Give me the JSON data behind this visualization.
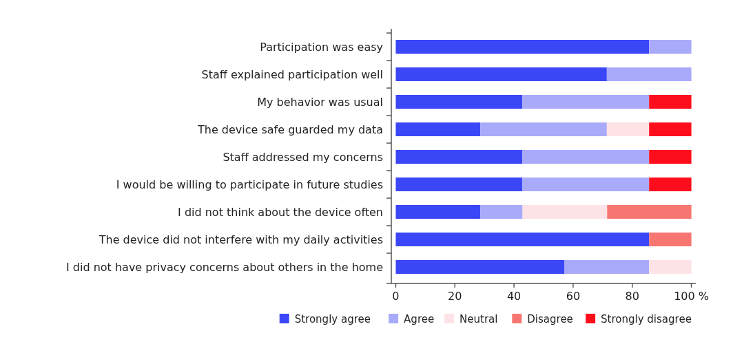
{
  "chart_data": {
    "type": "bar",
    "orientation": "horizontal",
    "stacked": true,
    "categories": [
      "Participation was easy",
      "Staff explained participation well",
      "My behavior was usual",
      "The device safe guarded my data",
      "Staff addressed my concerns",
      "I would be willing to participate in future studies",
      "I did not think about the device often",
      "The device did not interfere with my daily activities",
      "I did not have privacy concerns about others in the home"
    ],
    "series": [
      {
        "name": "Strongly agree",
        "color": "#3b47f7",
        "values": [
          85.7,
          71.4,
          42.8,
          28.6,
          42.8,
          42.8,
          28.6,
          85.7,
          57.1
        ]
      },
      {
        "name": "Agree",
        "color": "#aaaafb",
        "values": [
          14.3,
          28.6,
          42.9,
          42.8,
          42.9,
          42.9,
          14.3,
          null,
          28.6
        ]
      },
      {
        "name": "Neutral",
        "color": "#fde3e6",
        "values": [
          null,
          null,
          null,
          14.3,
          null,
          null,
          28.6,
          null,
          14.3
        ]
      },
      {
        "name": "Disagree",
        "color": "#f77671",
        "values": [
          null,
          null,
          null,
          null,
          null,
          null,
          28.5,
          14.3,
          null
        ]
      },
      {
        "name": "Strongly disagree",
        "color": "#fe0e1c",
        "values": [
          null,
          null,
          14.3,
          14.3,
          14.3,
          14.3,
          null,
          null,
          null
        ]
      }
    ],
    "xlim": [
      -1.5,
      101.5
    ],
    "xticks": [
      0,
      20,
      40,
      60,
      80,
      {
        "value": 100,
        "label": "100 %"
      }
    ],
    "legend": "bottom",
    "grid": false
  }
}
